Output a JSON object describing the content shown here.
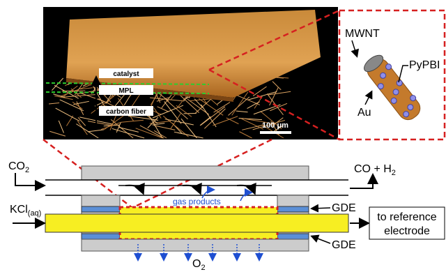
{
  "image_panel": {
    "catalyst": "catalyst",
    "mpl": "MPL",
    "carbon_fiber": "carbon fiber",
    "scale_bar": "100 μm"
  },
  "zoom": {
    "mwnt": "MWNT",
    "pypbi": "PyPBI",
    "au": "Au"
  },
  "cell": {
    "inlet_gas": {
      "text": "CO",
      "sub": "2"
    },
    "outlet_gas": {
      "text": "CO + H",
      "sub": "2"
    },
    "electrolyte": {
      "text": "KCl",
      "sub": "(aq)"
    },
    "gas_products": "gas products",
    "gde_top": "GDE",
    "gde_bottom": "GDE",
    "reference": [
      "to reference",
      "electrode"
    ],
    "oxygen": {
      "text": "O",
      "sub": "2"
    }
  }
}
